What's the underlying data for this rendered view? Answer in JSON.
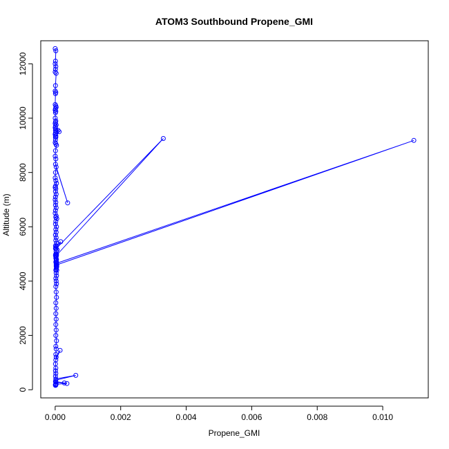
{
  "chart_data": {
    "type": "line",
    "title": "ATOM3 Southbound Propene_GMI",
    "xlabel": "Propene_GMI",
    "ylabel": "Altitude (m)",
    "xlim": [
      -0.00044,
      0.01139
    ],
    "ylim": [
      -300,
      12850
    ],
    "x_ticks": [
      0,
      0.002,
      0.004,
      0.006,
      0.008,
      0.01
    ],
    "x_tick_labels": [
      "0.000",
      "0.002",
      "0.004",
      "0.006",
      "0.008",
      "0.010"
    ],
    "y_ticks": [
      0,
      2000,
      4000,
      6000,
      8000,
      10000,
      12000
    ],
    "y_tick_labels": [
      "0",
      "2000",
      "4000",
      "6000",
      "8000",
      "10000",
      "12000"
    ],
    "grid": false,
    "legend": "none",
    "marker": "open-circle",
    "line_color": "#0000ff",
    "series": [
      {
        "x": [
          0.0,
          2e-05,
          1e-05,
          0.0,
          2e-05,
          1e-05,
          0.0,
          3e-05,
          1e-05,
          0.0,
          2e-05,
          1e-05,
          0.0,
          2e-05,
          3e-05,
          1e-05,
          0.0,
          2e-05,
          1e-05,
          0.0,
          2e-05,
          1e-05,
          0.0,
          3e-05,
          1e-05,
          0.0,
          2e-05,
          1e-05,
          2e-05,
          1e-05,
          0.0,
          2e-05,
          1e-05,
          0.00012,
          9e-05,
          2e-05,
          1e-05,
          0.0,
          2e-05,
          4e-05,
          1e-05,
          0.0,
          2e-05,
          1e-05,
          0.00038,
          3e-05,
          1e-05,
          0.0,
          2e-05,
          4e-05,
          1e-05,
          0.0,
          2e-05,
          1e-05,
          3e-05,
          1e-05,
          0.0,
          2e-05,
          1e-05,
          3e-05,
          1e-05,
          0.0,
          3e-05,
          2e-05,
          5e-05,
          2e-05,
          1e-05,
          4e-05,
          2e-05,
          3e-05,
          1e-05,
          3e-05,
          2e-05,
          4e-05,
          1e-05,
          2e-05,
          1e-05,
          6e-05,
          3e-05,
          2e-05,
          1e-05,
          3e-05,
          2e-05,
          4e-05,
          3e-05,
          2e-05,
          4e-05,
          3e-05,
          5e-05,
          4e-05,
          2e-05,
          4e-05,
          3e-05,
          0.00017,
          4e-05,
          3e-05,
          0.0033,
          4e-05,
          2e-05,
          3e-05,
          4e-05,
          3e-05,
          0.01095,
          5e-05,
          3e-05,
          4e-05,
          3e-05,
          5e-05,
          3e-05,
          4e-05,
          2e-05,
          3e-05,
          4e-05,
          2e-05,
          3e-05,
          4e-05,
          2e-05,
          3e-05,
          2e-05,
          3e-05,
          2e-05,
          3e-05,
          2e-05,
          4e-05,
          2e-05,
          3e-05,
          2e-05,
          3e-05,
          0.00015,
          2e-05,
          1e-05,
          2e-05,
          1e-05,
          2e-05,
          1e-05,
          2e-05,
          0.00063,
          2e-05,
          1e-05,
          0.00028,
          2e-05,
          0.00036,
          2e-05,
          1e-05,
          2e-05,
          1e-05,
          2e-05,
          1e-05,
          3e-05,
          1e-05
        ],
        "y": [
          12560,
          12480,
          12100,
          12000,
          11900,
          11800,
          11700,
          11650,
          11200,
          11000,
          10950,
          10900,
          10500,
          10450,
          10400,
          10350,
          10300,
          10250,
          10200,
          10000,
          9900,
          9850,
          9800,
          9750,
          9700,
          9650,
          9600,
          9550,
          9500,
          9450,
          9400,
          9350,
          9300,
          9500,
          9550,
          9300,
          9200,
          9100,
          9050,
          9000,
          8800,
          8600,
          8500,
          8300,
          6880,
          8200,
          8000,
          7800,
          7700,
          7600,
          7500,
          7450,
          7400,
          7300,
          7200,
          7100,
          7000,
          6900,
          6800,
          6700,
          6600,
          6500,
          6400,
          6350,
          6300,
          6200,
          6100,
          6000,
          5900,
          5800,
          5700,
          5600,
          5500,
          5400,
          5300,
          5250,
          5200,
          5150,
          5100,
          5000,
          4950,
          4900,
          4850,
          4800,
          4750,
          4700,
          4650,
          4600,
          4550,
          4500,
          4400,
          5000,
          5100,
          5450,
          5300,
          5200,
          9250,
          4950,
          4900,
          4800,
          4700,
          4650,
          9180,
          4600,
          4550,
          4500,
          4450,
          4400,
          4300,
          4200,
          4100,
          4000,
          3900,
          3800,
          3600,
          3400,
          3200,
          3000,
          2800,
          2600,
          2400,
          2200,
          2000,
          1800,
          1600,
          1500,
          1300,
          1200,
          1450,
          1100,
          950,
          800,
          700,
          600,
          500,
          400,
          530,
          350,
          300,
          250,
          280,
          230,
          200,
          180,
          220,
          190,
          170,
          160,
          210,
          170
        ]
      }
    ]
  }
}
